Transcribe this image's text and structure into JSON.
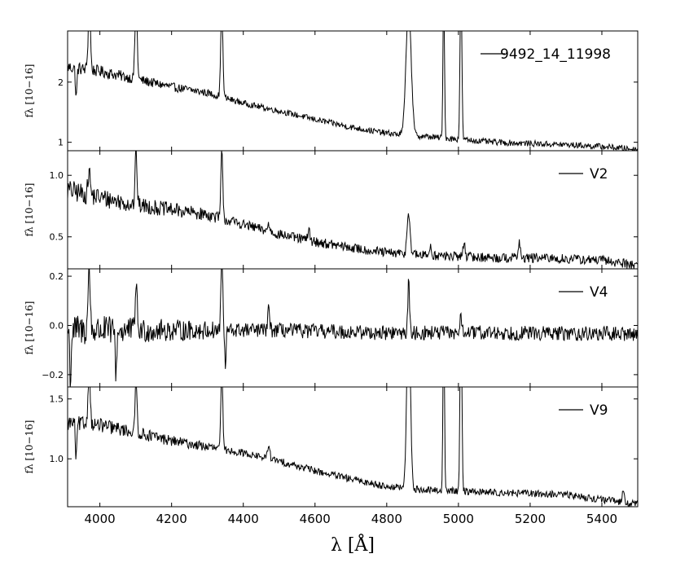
{
  "chart_data": {
    "type": "line",
    "x_label": "λ [Å]",
    "x_range": [
      3910,
      5500
    ],
    "x_ticks": [
      4000,
      4200,
      4400,
      4600,
      4800,
      5000,
      5200,
      5400
    ],
    "x_tick_labels": [
      "4000",
      "4200",
      "4400",
      "4600",
      "4800",
      "5000",
      "5200",
      "5400"
    ],
    "panels": [
      {
        "legend": "9492_14_11998",
        "y_label": "fλ [10−16]",
        "y_range": [
          0.86,
          2.85
        ],
        "y_ticks": [
          1,
          2
        ],
        "y_tick_labels": [
          "1",
          "2"
        ],
        "continuum": [
          [
            3910,
            2.25
          ],
          [
            4000,
            2.18
          ],
          [
            4100,
            2.05
          ],
          [
            4200,
            1.92
          ],
          [
            4300,
            1.82
          ],
          [
            4400,
            1.65
          ],
          [
            4500,
            1.52
          ],
          [
            4600,
            1.38
          ],
          [
            4700,
            1.25
          ],
          [
            4800,
            1.15
          ],
          [
            4900,
            1.1
          ],
          [
            5000,
            1.05
          ],
          [
            5100,
            1.0
          ],
          [
            5200,
            0.98
          ],
          [
            5300,
            0.96
          ],
          [
            5400,
            0.93
          ],
          [
            5500,
            0.88
          ]
        ],
        "noise": 0.05,
        "lines": [
          [
            3970,
            1.5,
            3
          ],
          [
            4101,
            1.5,
            3
          ],
          [
            4340,
            1.4,
            3
          ],
          [
            4861,
            2.2,
            7
          ],
          [
            4959,
            2.5,
            2
          ],
          [
            5007,
            2.6,
            2.5
          ]
        ],
        "absorptions": [
          [
            3934,
            0.5
          ],
          [
            3968,
            0.4
          ],
          [
            4101,
            0.35
          ]
        ]
      },
      {
        "legend": "V2",
        "y_label": "fλ [10−16]",
        "y_range": [
          0.24,
          1.2
        ],
        "y_ticks": [
          0.5,
          1.0
        ],
        "y_tick_labels": [
          "0.5",
          "1.0"
        ],
        "continuum": [
          [
            3910,
            0.88
          ],
          [
            4000,
            0.82
          ],
          [
            4100,
            0.76
          ],
          [
            4200,
            0.72
          ],
          [
            4300,
            0.68
          ],
          [
            4400,
            0.6
          ],
          [
            4500,
            0.52
          ],
          [
            4600,
            0.46
          ],
          [
            4700,
            0.41
          ],
          [
            4800,
            0.37
          ],
          [
            4900,
            0.35
          ],
          [
            5000,
            0.34
          ],
          [
            5100,
            0.33
          ],
          [
            5200,
            0.33
          ],
          [
            5300,
            0.32
          ],
          [
            5400,
            0.31
          ],
          [
            5500,
            0.27
          ]
        ],
        "noise": 0.04,
        "lines": [
          [
            3970,
            0.2,
            3
          ],
          [
            4101,
            0.45,
            2.5
          ],
          [
            4340,
            0.55,
            2.5
          ],
          [
            4861,
            0.35,
            4
          ],
          [
            4922,
            0.08,
            3
          ],
          [
            5016,
            0.12,
            3
          ],
          [
            5169,
            0.12,
            3
          ],
          [
            4471,
            0.06,
            3
          ],
          [
            4583,
            0.08,
            3
          ]
        ],
        "absorptions": []
      },
      {
        "legend": "V4",
        "y_label": "fλ [10−16]",
        "y_range": [
          -0.25,
          0.23
        ],
        "y_ticks": [
          -0.2,
          0.0,
          0.2
        ],
        "y_tick_labels": [
          "−0.2",
          "0.0",
          "0.2"
        ],
        "continuum": [
          [
            3910,
            -0.02
          ],
          [
            4200,
            -0.02
          ],
          [
            4500,
            -0.02
          ],
          [
            4800,
            -0.03
          ],
          [
            5100,
            -0.03
          ],
          [
            5500,
            -0.035
          ]
        ],
        "noise": 0.03,
        "lines": [
          [
            3970,
            0.25,
            3
          ],
          [
            4101,
            0.2,
            2.5
          ],
          [
            4340,
            0.3,
            2.5
          ],
          [
            4471,
            0.08,
            3
          ],
          [
            4861,
            0.2,
            2.5
          ],
          [
            5007,
            0.05,
            4
          ]
        ],
        "absorptions": [
          [
            4045,
            0.18
          ],
          [
            4350,
            0.15
          ],
          [
            3918,
            0.2
          ]
        ]
      },
      {
        "legend": "V9",
        "y_label": "fλ [10−16]",
        "y_range": [
          0.6,
          1.6
        ],
        "y_ticks": [
          1.0,
          1.5
        ],
        "y_tick_labels": [
          "1.0",
          "1.5"
        ],
        "continuum": [
          [
            3910,
            1.3
          ],
          [
            4000,
            1.28
          ],
          [
            4100,
            1.22
          ],
          [
            4200,
            1.15
          ],
          [
            4300,
            1.1
          ],
          [
            4400,
            1.05
          ],
          [
            4500,
            0.98
          ],
          [
            4600,
            0.9
          ],
          [
            4700,
            0.83
          ],
          [
            4800,
            0.77
          ],
          [
            4900,
            0.74
          ],
          [
            5000,
            0.73
          ],
          [
            5100,
            0.72
          ],
          [
            5200,
            0.71
          ],
          [
            5300,
            0.7
          ],
          [
            5400,
            0.66
          ],
          [
            5500,
            0.62
          ]
        ],
        "noise": 0.03,
        "lines": [
          [
            3970,
            0.45,
            3
          ],
          [
            4101,
            0.45,
            2.5
          ],
          [
            4340,
            0.7,
            2.5
          ],
          [
            4471,
            0.12,
            3
          ],
          [
            4861,
            1.5,
            5
          ],
          [
            4959,
            1.5,
            2
          ],
          [
            5007,
            1.6,
            2.5
          ],
          [
            5460,
            0.1,
            3
          ]
        ],
        "absorptions": [
          [
            3934,
            0.3
          ]
        ]
      }
    ]
  }
}
